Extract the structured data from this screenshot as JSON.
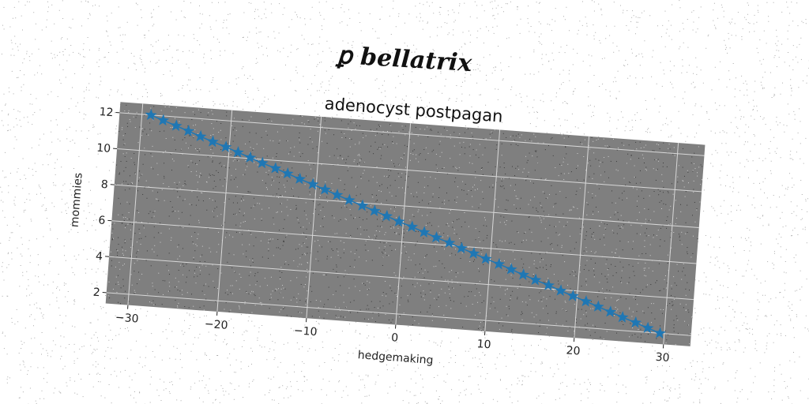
{
  "figure": {
    "suptitle": "ꝑ bellatrix"
  },
  "chart_data": {
    "type": "line",
    "title": "adenocyst postpagan",
    "xlabel": "hedgemaking",
    "ylabel": "mommies",
    "xlim": [
      -32.5,
      33
    ],
    "ylim": [
      1.4,
      12.6
    ],
    "xticks": [
      -30,
      -20,
      -10,
      0,
      10,
      20,
      30
    ],
    "yticks": [
      2,
      4,
      6,
      8,
      10,
      12
    ],
    "grid": true,
    "marker": "star",
    "series": [
      {
        "color": "#1f77b4",
        "x": [
          -29.0,
          -27.6,
          -26.1,
          -24.7,
          -23.3,
          -21.9,
          -20.4,
          -19.0,
          -17.6,
          -16.2,
          -14.7,
          -13.3,
          -11.9,
          -10.4,
          -9.0,
          -7.6,
          -6.2,
          -4.7,
          -3.3,
          -1.9,
          -0.5,
          1.0,
          2.4,
          3.8,
          5.3,
          6.7,
          8.1,
          9.5,
          11.0,
          12.4,
          13.8,
          15.2,
          16.7,
          18.1,
          19.5,
          21.0,
          22.4,
          23.8,
          25.2,
          26.7,
          28.1,
          29.5
        ],
        "y": [
          12.0,
          11.76,
          11.51,
          11.27,
          11.02,
          10.78,
          10.54,
          10.29,
          10.05,
          9.8,
          9.56,
          9.32,
          9.07,
          8.83,
          8.59,
          8.34,
          8.1,
          7.85,
          7.61,
          7.37,
          7.12,
          6.88,
          6.63,
          6.39,
          6.15,
          5.9,
          5.66,
          5.41,
          5.17,
          4.93,
          4.68,
          4.44,
          4.2,
          3.95,
          3.71,
          3.46,
          3.22,
          2.98,
          2.73,
          2.49,
          2.24,
          2.0
        ]
      }
    ]
  }
}
